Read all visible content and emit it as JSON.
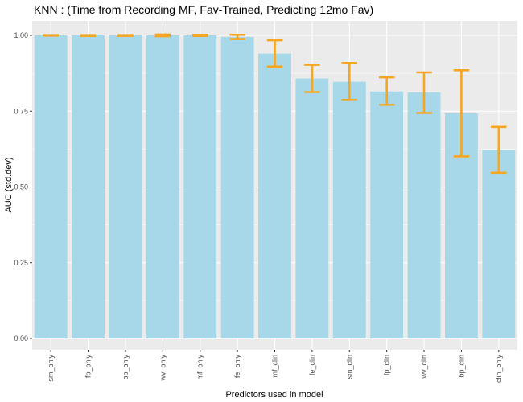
{
  "chart_data": {
    "type": "bar",
    "title": "KNN : (Time from Recording MF, Fav-Trained, Predicting 12mo Fav)",
    "xlabel": "Predictors used in model",
    "ylabel": "AUC (std.dev)",
    "ylim": [
      0,
      1.05
    ],
    "yticks": [
      "0.00",
      "0.25",
      "0.50",
      "0.75",
      "1.00"
    ],
    "grid": true,
    "bar_color": "#a6d8ea",
    "error_color": "#f5a623",
    "panel_color": "#ebebeb",
    "categories": [
      "sm_only",
      "fp_only",
      "bp_only",
      "wv_only",
      "mf_only",
      "fe_only",
      "mf_clin",
      "fe_clin",
      "sm_clin",
      "fp_clin",
      "wv_clin",
      "bp_clin",
      "clin_only"
    ],
    "values": [
      1.0,
      1.0,
      1.0,
      1.0,
      1.0,
      0.995,
      0.94,
      0.858,
      0.847,
      0.815,
      0.812,
      0.743,
      0.622
    ],
    "err_low": [
      0.999,
      0.998,
      0.998,
      0.997,
      0.998,
      0.988,
      0.897,
      0.813,
      0.787,
      0.771,
      0.744,
      0.601,
      0.547
    ],
    "err_high": [
      1.001,
      1.001,
      1.001,
      1.003,
      1.002,
      1.002,
      0.984,
      0.903,
      0.909,
      0.862,
      0.878,
      0.885,
      0.698
    ]
  }
}
